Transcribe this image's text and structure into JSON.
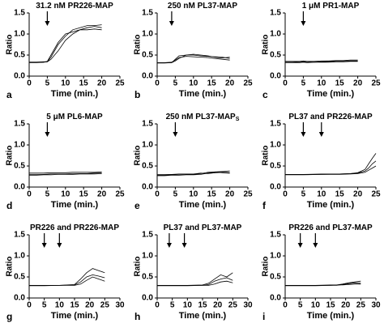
{
  "chart_data": [
    {
      "type": "line",
      "title": "31.2 nM PR226-MAP",
      "panel_label": "a",
      "x_label": "Time (min.)",
      "y_label": "Ratio",
      "x": [
        0,
        2,
        4,
        5,
        6,
        8,
        10,
        12,
        14,
        16,
        18,
        20
      ],
      "arrows": [
        5
      ],
      "xlim": [
        0,
        25
      ],
      "xticks": [
        0,
        5,
        10,
        15,
        20,
        25
      ],
      "ylim": [
        0,
        1.5
      ],
      "yticks": [
        {
          "value": 0,
          "label": "0.0"
        },
        {
          "value": 0.5,
          "label": "0.5"
        },
        {
          "value": 1,
          "label": "1.0"
        },
        {
          "value": 1.5,
          "label": "1.5"
        }
      ],
      "series": [
        {
          "color": "#000000",
          "values": [
            0.33,
            0.33,
            0.33,
            0.34,
            0.45,
            0.75,
            0.95,
            1.1,
            1.15,
            1.2,
            1.2,
            1.22
          ]
        },
        {
          "color": "#000000",
          "values": [
            0.32,
            0.32,
            0.33,
            0.35,
            0.5,
            0.8,
            1.0,
            1.05,
            1.1,
            1.15,
            1.18,
            1.15
          ]
        },
        {
          "color": "#000000",
          "values": [
            0.33,
            0.33,
            0.34,
            0.34,
            0.4,
            0.6,
            0.85,
            1.0,
            1.1,
            1.1,
            1.12,
            1.1
          ]
        }
      ]
    },
    {
      "type": "line",
      "title": "250 nM PL37-MAP",
      "panel_label": "b",
      "x_label": "Time (min.)",
      "y_label": "Ratio",
      "x": [
        0,
        2,
        4,
        5,
        6,
        8,
        10,
        12,
        14,
        16,
        18,
        20
      ],
      "arrows": [
        4
      ],
      "xlim": [
        0,
        25
      ],
      "xticks": [
        0,
        5,
        10,
        15,
        20,
        25
      ],
      "ylim": [
        0,
        1.5
      ],
      "yticks": [
        {
          "value": 0,
          "label": "0.0"
        },
        {
          "value": 0.5,
          "label": "0.5"
        },
        {
          "value": 1,
          "label": "1.0"
        },
        {
          "value": 1.5,
          "label": "1.5"
        }
      ],
      "series": [
        {
          "color": "#000000",
          "values": [
            0.32,
            0.32,
            0.32,
            0.4,
            0.48,
            0.5,
            0.5,
            0.48,
            0.47,
            0.46,
            0.45,
            0.42
          ]
        },
        {
          "color": "#000000",
          "values": [
            0.32,
            0.32,
            0.33,
            0.38,
            0.44,
            0.47,
            0.46,
            0.45,
            0.44,
            0.42,
            0.4,
            0.38
          ]
        },
        {
          "color": "#000000",
          "values": [
            0.31,
            0.31,
            0.32,
            0.36,
            0.42,
            0.5,
            0.52,
            0.5,
            0.48,
            0.45,
            0.43,
            0.45
          ]
        }
      ]
    },
    {
      "type": "line",
      "title": "1 μM PR1-MAP",
      "panel_label": "c",
      "x_label": "Time (min.)",
      "y_label": "Ratio",
      "x": [
        0,
        2,
        4,
        5,
        6,
        8,
        10,
        12,
        14,
        16,
        18,
        20
      ],
      "arrows": [
        5
      ],
      "xlim": [
        0,
        25
      ],
      "xticks": [
        0,
        5,
        10,
        15,
        20,
        25
      ],
      "ylim": [
        0,
        1.5
      ],
      "yticks": [
        {
          "value": 0,
          "label": "0.0"
        },
        {
          "value": 0.5,
          "label": "0.5"
        },
        {
          "value": 1,
          "label": "1.0"
        },
        {
          "value": 1.5,
          "label": "1.5"
        }
      ],
      "series": [
        {
          "color": "#000000",
          "values": [
            0.34,
            0.34,
            0.33,
            0.34,
            0.34,
            0.33,
            0.34,
            0.35,
            0.35,
            0.35,
            0.36,
            0.36
          ]
        },
        {
          "color": "#000000",
          "values": [
            0.32,
            0.32,
            0.32,
            0.33,
            0.32,
            0.33,
            0.33,
            0.33,
            0.34,
            0.34,
            0.35,
            0.35
          ]
        },
        {
          "color": "#000000",
          "values": [
            0.35,
            0.35,
            0.35,
            0.36,
            0.35,
            0.35,
            0.36,
            0.36,
            0.37,
            0.37,
            0.38,
            0.38
          ]
        }
      ]
    },
    {
      "type": "line",
      "title": "5 μM PL6-MAP",
      "panel_label": "d",
      "x_label": "Time (min.)",
      "y_label": "Ratio",
      "x": [
        0,
        2,
        4,
        6,
        8,
        10,
        12,
        14,
        16,
        18,
        20
      ],
      "arrows": [
        5
      ],
      "xlim": [
        0,
        25
      ],
      "xticks": [
        0,
        5,
        10,
        15,
        20,
        25
      ],
      "ylim": [
        0,
        1.5
      ],
      "yticks": [
        {
          "value": 0,
          "label": "0.0"
        },
        {
          "value": 0.5,
          "label": "0.5"
        },
        {
          "value": 1,
          "label": "1.0"
        },
        {
          "value": 1.5,
          "label": "1.5"
        }
      ],
      "series": [
        {
          "color": "#000000",
          "values": [
            0.3,
            0.3,
            0.3,
            0.31,
            0.31,
            0.31,
            0.32,
            0.32,
            0.32,
            0.33,
            0.33
          ]
        },
        {
          "color": "#000000",
          "values": [
            0.33,
            0.33,
            0.33,
            0.34,
            0.34,
            0.34,
            0.35,
            0.35,
            0.35,
            0.35,
            0.36
          ]
        },
        {
          "color": "#000000",
          "values": [
            0.28,
            0.28,
            0.29,
            0.29,
            0.3,
            0.3,
            0.3,
            0.31,
            0.31,
            0.31,
            0.32
          ]
        }
      ]
    },
    {
      "type": "line",
      "title": "250 nM PL37-MAP",
      "title_subscript": "S",
      "panel_label": "e",
      "x_label": "Time (min.)",
      "y_label": "Ratio",
      "x": [
        0,
        2,
        4,
        6,
        8,
        10,
        12,
        14,
        16,
        18,
        20
      ],
      "arrows": [
        5
      ],
      "xlim": [
        0,
        25
      ],
      "xticks": [
        0,
        5,
        10,
        15,
        20,
        25
      ],
      "ylim": [
        0,
        1.5
      ],
      "yticks": [
        {
          "value": 0,
          "label": "0.0"
        },
        {
          "value": 0.5,
          "label": "0.5"
        },
        {
          "value": 1,
          "label": "1.0"
        },
        {
          "value": 1.5,
          "label": "1.5"
        }
      ],
      "series": [
        {
          "color": "#000000",
          "values": [
            0.28,
            0.28,
            0.29,
            0.29,
            0.3,
            0.3,
            0.32,
            0.35,
            0.36,
            0.37,
            0.38
          ]
        },
        {
          "color": "#000000",
          "values": [
            0.3,
            0.3,
            0.3,
            0.31,
            0.31,
            0.31,
            0.33,
            0.32,
            0.34,
            0.35,
            0.34
          ]
        },
        {
          "color": "#000000",
          "values": [
            0.27,
            0.27,
            0.28,
            0.28,
            0.29,
            0.29,
            0.3,
            0.33,
            0.36,
            0.34,
            0.33
          ]
        }
      ]
    },
    {
      "type": "line",
      "title": "PL37 and PR226-MAP",
      "panel_label": "f",
      "x_label": "Time (min.)",
      "y_label": "Ratio",
      "x": [
        0,
        5,
        10,
        15,
        18,
        20,
        22,
        23,
        24,
        25
      ],
      "arrows": [
        5,
        10
      ],
      "xlim": [
        0,
        25
      ],
      "xticks": [
        0,
        5,
        10,
        15,
        20,
        25
      ],
      "ylim": [
        0,
        1.5
      ],
      "yticks": [
        {
          "value": 0,
          "label": "0.0"
        },
        {
          "value": 0.5,
          "label": "0.5"
        },
        {
          "value": 1,
          "label": "1.0"
        },
        {
          "value": 1.5,
          "label": "1.5"
        }
      ],
      "series": [
        {
          "color": "#000000",
          "values": [
            0.3,
            0.3,
            0.3,
            0.31,
            0.32,
            0.34,
            0.42,
            0.55,
            0.68,
            0.8
          ]
        },
        {
          "color": "#000000",
          "values": [
            0.3,
            0.3,
            0.31,
            0.31,
            0.32,
            0.33,
            0.38,
            0.45,
            0.55,
            0.62
          ]
        },
        {
          "color": "#000000",
          "values": [
            0.29,
            0.29,
            0.3,
            0.3,
            0.31,
            0.32,
            0.35,
            0.4,
            0.45,
            0.5
          ]
        }
      ]
    },
    {
      "type": "line",
      "title": "PR226 and PR226-MAP",
      "panel_label": "g",
      "x_label": "Time (min.)",
      "y_label": "Ratio",
      "x": [
        0,
        5,
        10,
        15,
        17,
        19,
        21,
        23,
        25
      ],
      "arrows": [
        5,
        10
      ],
      "xlim": [
        0,
        30
      ],
      "xticks": [
        0,
        5,
        10,
        15,
        20,
        25,
        30
      ],
      "ylim": [
        0,
        1.5
      ],
      "yticks": [
        {
          "value": 0,
          "label": "0.0"
        },
        {
          "value": 0.5,
          "label": "0.5"
        },
        {
          "value": 1,
          "label": "1.0"
        },
        {
          "value": 1.5,
          "label": "1.5"
        }
      ],
      "series": [
        {
          "color": "#000000",
          "values": [
            0.3,
            0.3,
            0.3,
            0.32,
            0.45,
            0.6,
            0.7,
            0.65,
            0.6
          ]
        },
        {
          "color": "#000000",
          "values": [
            0.3,
            0.3,
            0.3,
            0.31,
            0.38,
            0.5,
            0.55,
            0.52,
            0.48
          ]
        },
        {
          "color": "#000000",
          "values": [
            0.29,
            0.29,
            0.3,
            0.3,
            0.33,
            0.42,
            0.5,
            0.45,
            0.4
          ]
        }
      ]
    },
    {
      "type": "line",
      "title": "PL37 and PL37-MAP",
      "panel_label": "h",
      "x_label": "Time (min.)",
      "y_label": "Ratio",
      "x": [
        0,
        5,
        10,
        15,
        17,
        19,
        21,
        23,
        25
      ],
      "arrows": [
        4,
        9
      ],
      "xlim": [
        0,
        30
      ],
      "xticks": [
        0,
        5,
        10,
        15,
        20,
        25,
        30
      ],
      "ylim": [
        0,
        1.5
      ],
      "yticks": [
        {
          "value": 0,
          "label": "0.0"
        },
        {
          "value": 0.5,
          "label": "0.5"
        },
        {
          "value": 1,
          "label": "1.0"
        },
        {
          "value": 1.5,
          "label": "1.5"
        }
      ],
      "series": [
        {
          "color": "#000000",
          "values": [
            0.3,
            0.3,
            0.3,
            0.31,
            0.35,
            0.45,
            0.55,
            0.5,
            0.6
          ]
        },
        {
          "color": "#000000",
          "values": [
            0.3,
            0.3,
            0.3,
            0.3,
            0.32,
            0.4,
            0.45,
            0.48,
            0.42
          ]
        },
        {
          "color": "#000000",
          "values": [
            0.29,
            0.29,
            0.29,
            0.3,
            0.3,
            0.33,
            0.38,
            0.4,
            0.36
          ]
        }
      ]
    },
    {
      "type": "line",
      "title": "PR226 and PL37-MAP",
      "panel_label": "i",
      "x_label": "Time (min.)",
      "y_label": "Ratio",
      "x": [
        0,
        5,
        10,
        15,
        17,
        19,
        21,
        23,
        25
      ],
      "arrows": [
        5,
        10
      ],
      "xlim": [
        0,
        30
      ],
      "xticks": [
        0,
        5,
        10,
        15,
        20,
        25,
        30
      ],
      "ylim": [
        0,
        1.5
      ],
      "yticks": [
        {
          "value": 0,
          "label": "0.0"
        },
        {
          "value": 0.5,
          "label": "0.5"
        },
        {
          "value": 1,
          "label": "1.0"
        },
        {
          "value": 1.5,
          "label": "1.5"
        }
      ],
      "series": [
        {
          "color": "#000000",
          "values": [
            0.3,
            0.3,
            0.3,
            0.3,
            0.31,
            0.33,
            0.36,
            0.38,
            0.4
          ]
        },
        {
          "color": "#000000",
          "values": [
            0.29,
            0.29,
            0.29,
            0.3,
            0.3,
            0.32,
            0.34,
            0.36,
            0.35
          ]
        },
        {
          "color": "#000000",
          "values": [
            0.3,
            0.3,
            0.3,
            0.31,
            0.31,
            0.31,
            0.32,
            0.33,
            0.33
          ]
        }
      ]
    }
  ]
}
